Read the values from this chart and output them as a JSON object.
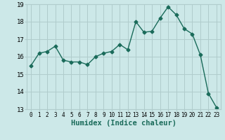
{
  "x": [
    0,
    1,
    2,
    3,
    4,
    5,
    6,
    7,
    8,
    9,
    10,
    11,
    12,
    13,
    14,
    15,
    16,
    17,
    18,
    19,
    20,
    21,
    22,
    23
  ],
  "y": [
    15.5,
    16.2,
    16.3,
    16.6,
    15.8,
    15.7,
    15.7,
    15.55,
    16.0,
    16.2,
    16.3,
    16.7,
    16.4,
    18.0,
    17.4,
    17.45,
    18.2,
    18.85,
    18.4,
    17.6,
    17.3,
    16.1,
    13.9,
    13.1
  ],
  "line_color": "#1a6b5a",
  "marker": "D",
  "marker_size": 2.5,
  "bg_color": "#cce8e8",
  "grid_color": "#b0cccc",
  "xlabel": "Humidex (Indice chaleur)",
  "ylim": [
    13,
    19
  ],
  "xlim": [
    -0.5,
    23.5
  ],
  "yticks": [
    13,
    14,
    15,
    16,
    17,
    18,
    19
  ],
  "xticks": [
    0,
    1,
    2,
    3,
    4,
    5,
    6,
    7,
    8,
    9,
    10,
    11,
    12,
    13,
    14,
    15,
    16,
    17,
    18,
    19,
    20,
    21,
    22,
    23
  ],
  "tick_color": "#000000",
  "font_size_xlabel": 7.5,
  "font_size_xticks": 5.5,
  "font_size_yticks": 6.5
}
